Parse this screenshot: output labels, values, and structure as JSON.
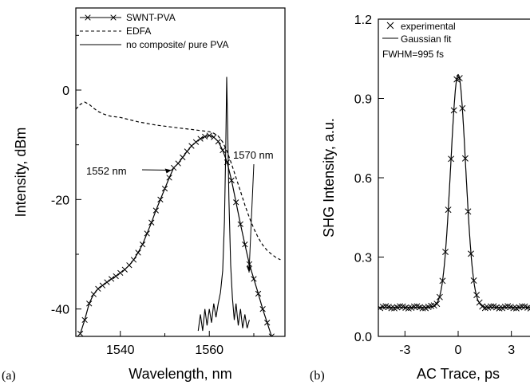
{
  "chart_data": [
    {
      "panel_label": "(a)",
      "type": "line",
      "xlabel": "Wavelength, nm",
      "ylabel": "Intensity, dBm",
      "xlim": [
        1530,
        1577
      ],
      "ylim": [
        -45,
        15
      ],
      "xticks": [
        1540,
        1550,
        1560,
        1570
      ],
      "xtick_labels": [
        "1540",
        "",
        "1560",
        ""
      ],
      "yticks": [
        -40,
        -30,
        -20,
        -10,
        0,
        10
      ],
      "ytick_labels": [
        "-40",
        "",
        "-20",
        "",
        "0",
        ""
      ],
      "legend_position": "top-left",
      "series": [
        {
          "name": "SWNT-PVA",
          "style": "solid-with-cross-markers",
          "color": "#000000",
          "points": [
            [
              1531,
              -44.5
            ],
            [
              1532,
              -42
            ],
            [
              1533,
              -39
            ],
            [
              1534,
              -37.3
            ],
            [
              1535,
              -36.3
            ],
            [
              1536,
              -35.7
            ],
            [
              1537,
              -35.1
            ],
            [
              1538,
              -34.5
            ],
            [
              1539,
              -34
            ],
            [
              1540,
              -33.4
            ],
            [
              1541,
              -32.8
            ],
            [
              1542,
              -32
            ],
            [
              1543,
              -31
            ],
            [
              1544,
              -29.7
            ],
            [
              1545,
              -28.2
            ],
            [
              1546,
              -26.2
            ],
            [
              1547,
              -24.2
            ],
            [
              1548,
              -22
            ],
            [
              1549,
              -20
            ],
            [
              1550,
              -18
            ],
            [
              1551,
              -16
            ],
            [
              1552,
              -14.2
            ],
            [
              1553,
              -13.4
            ],
            [
              1554,
              -12.3
            ],
            [
              1555,
              -11.2
            ],
            [
              1556,
              -10.2
            ],
            [
              1557,
              -9.5
            ],
            [
              1558,
              -8.9
            ],
            [
              1559,
              -8.5
            ],
            [
              1560,
              -8.3
            ],
            [
              1561,
              -8.6
            ],
            [
              1562,
              -9.4
            ],
            [
              1563,
              -11
            ],
            [
              1564,
              -13.2
            ],
            [
              1565,
              -16.5
            ],
            [
              1566,
              -20.5
            ],
            [
              1567,
              -24.5
            ],
            [
              1568,
              -28.2
            ],
            [
              1569,
              -31.8
            ],
            [
              1570,
              -34.5
            ],
            [
              1571,
              -37.2
            ],
            [
              1572,
              -40
            ],
            [
              1573,
              -42.5
            ],
            [
              1574,
              -45
            ]
          ]
        },
        {
          "name": "EDFA",
          "style": "dashed",
          "color": "#000000",
          "points": [
            [
              1530,
              -3.5
            ],
            [
              1531,
              -2.6
            ],
            [
              1532,
              -2.2
            ],
            [
              1533,
              -2.6
            ],
            [
              1534,
              -3.3
            ],
            [
              1535,
              -3.9
            ],
            [
              1536,
              -4.3
            ],
            [
              1537,
              -4.6
            ],
            [
              1538,
              -4.8
            ],
            [
              1539,
              -4.9
            ],
            [
              1540,
              -5
            ],
            [
              1542,
              -5.4
            ],
            [
              1544,
              -5.8
            ],
            [
              1546,
              -6.1
            ],
            [
              1548,
              -6.4
            ],
            [
              1550,
              -6.6
            ],
            [
              1552,
              -6.8
            ],
            [
              1554,
              -7
            ],
            [
              1556,
              -7.2
            ],
            [
              1558,
              -7.4
            ],
            [
              1560,
              -7.6
            ],
            [
              1561,
              -7.9
            ],
            [
              1562,
              -8.4
            ],
            [
              1563,
              -9.5
            ],
            [
              1564,
              -11.2
            ],
            [
              1565,
              -13.5
            ],
            [
              1566,
              -16
            ],
            [
              1567,
              -18.5
            ],
            [
              1568,
              -21
            ],
            [
              1569,
              -23.3
            ],
            [
              1570,
              -25.3
            ],
            [
              1571,
              -27
            ],
            [
              1572,
              -28.3
            ],
            [
              1573,
              -29.3
            ],
            [
              1574,
              -30
            ],
            [
              1575,
              -30.6
            ],
            [
              1576,
              -31
            ]
          ]
        },
        {
          "name": "no composite/ pure PVA",
          "style": "solid",
          "color": "#000000",
          "points": [
            [
              1557.5,
              -44
            ],
            [
              1558,
              -41
            ],
            [
              1558.5,
              -44
            ],
            [
              1559,
              -40
            ],
            [
              1559.5,
              -43
            ],
            [
              1560,
              -40
            ],
            [
              1560.5,
              -42.5
            ],
            [
              1561,
              -39
            ],
            [
              1561.5,
              -41.5
            ],
            [
              1562,
              -39
            ],
            [
              1562.5,
              -37
            ],
            [
              1563,
              -33
            ],
            [
              1563.4,
              -24
            ],
            [
              1563.7,
              -10
            ],
            [
              1563.9,
              2.4
            ],
            [
              1564.1,
              -6
            ],
            [
              1564.4,
              -20
            ],
            [
              1564.8,
              -32
            ],
            [
              1565.2,
              -38
            ],
            [
              1565.6,
              -42
            ],
            [
              1566,
              -39
            ],
            [
              1566.5,
              -43
            ],
            [
              1567,
              -40
            ],
            [
              1567.5,
              -43.5
            ],
            [
              1568,
              -41
            ],
            [
              1568.5,
              -43.5
            ],
            [
              1569,
              -42
            ]
          ]
        }
      ],
      "annotations": [
        {
          "text": "1552 nm",
          "x": 1552,
          "y": -14.2
        },
        {
          "text": "1570 nm",
          "x": 1570,
          "y": -34.5
        }
      ]
    },
    {
      "panel_label": "(b)",
      "type": "scatter",
      "xlabel": "AC Trace, ps",
      "ylabel": "SHG Intensity, a.u.",
      "xlim": [
        -4.5,
        4.5
      ],
      "ylim": [
        0,
        1.2
      ],
      "xticks": [
        -3,
        0,
        3
      ],
      "xtick_labels": [
        "-3",
        "0",
        "3"
      ],
      "yticks": [
        0,
        0.3,
        0.6,
        0.9,
        1.2
      ],
      "ytick_labels": [
        "0.0",
        "0.3",
        "0.6",
        "0.9",
        "1.2"
      ],
      "legend_position": "top-left",
      "fwhm_label": "FWHM=995 fs",
      "series": [
        {
          "name": "experimental",
          "style": "cross-markers",
          "color": "#000000"
        },
        {
          "name": "Gaussian fit",
          "style": "solid",
          "color": "#000000"
        }
      ],
      "gaussian": {
        "baseline": 0.11,
        "amplitude": 0.88,
        "center": 0,
        "fwhm_ps": 0.995
      }
    }
  ]
}
